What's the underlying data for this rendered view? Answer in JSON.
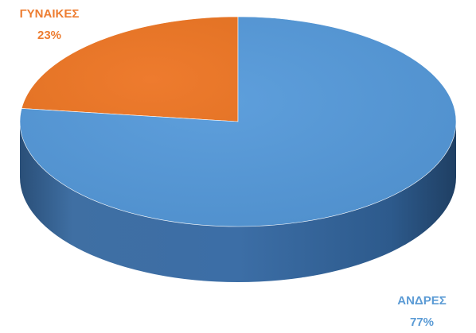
{
  "chart_data": {
    "type": "pie",
    "style": "3d",
    "slices": [
      {
        "label": "ΓΥΝΑΙΚΕΣ",
        "value": 23,
        "value_text": "23%",
        "color": "#ED7D31"
      },
      {
        "label": "ΑΝΔΡΕΣ",
        "value": 77,
        "value_text": "77%",
        "color": "#5B9BD5"
      }
    ],
    "label_color_women": "#ED7D31",
    "label_color_men": "#5B9BD5"
  }
}
